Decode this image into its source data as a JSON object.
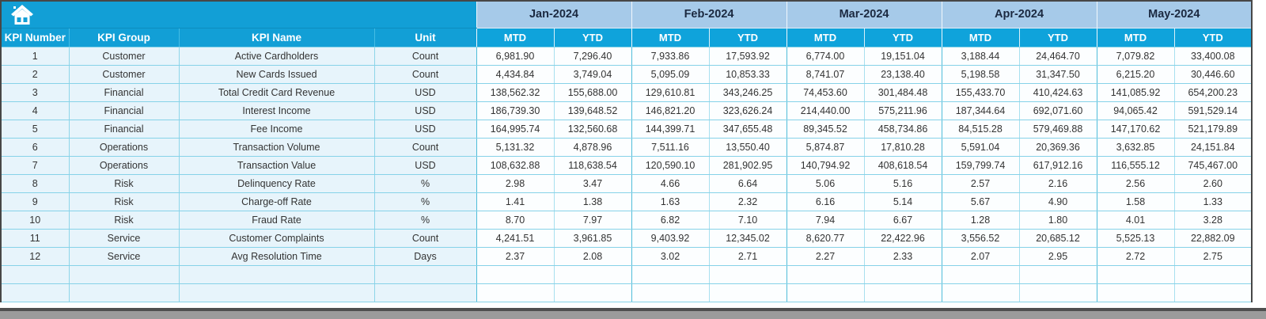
{
  "app": {
    "home_icon": "home-icon",
    "accent_cyan": "#129fd6",
    "subheader_cyan": "#0fa3db",
    "month_header_blue": "#a6cae9",
    "left_cell_blue": "#e7f4fb",
    "grid_border_cyan": "#86d2e8",
    "outer_border_gray": "#474747"
  },
  "table": {
    "left_headers": [
      "KPI Number",
      "KPI Group",
      "KPI Name",
      "Unit"
    ],
    "months": [
      "Jan-2024",
      "Feb-2024",
      "Mar-2024",
      "Apr-2024",
      "May-2024"
    ],
    "sub_headers": [
      "MTD",
      "YTD"
    ],
    "rows": [
      {
        "number": "1",
        "group": "Customer",
        "name": "Active Cardholders",
        "unit": "Count",
        "values": [
          "6,981.90",
          "7,296.40",
          "7,933.86",
          "17,593.92",
          "6,774.00",
          "19,151.04",
          "3,188.44",
          "24,464.70",
          "7,079.82",
          "33,400.08"
        ]
      },
      {
        "number": "2",
        "group": "Customer",
        "name": "New Cards Issued",
        "unit": "Count",
        "values": [
          "4,434.84",
          "3,749.04",
          "5,095.09",
          "10,853.33",
          "8,741.07",
          "23,138.40",
          "5,198.58",
          "31,347.50",
          "6,215.20",
          "30,446.60"
        ]
      },
      {
        "number": "3",
        "group": "Financial",
        "name": "Total Credit Card Revenue",
        "unit": "USD",
        "values": [
          "138,562.32",
          "155,688.00",
          "129,610.81",
          "343,246.25",
          "74,453.60",
          "301,484.48",
          "155,433.70",
          "410,424.63",
          "141,085.92",
          "654,200.23"
        ]
      },
      {
        "number": "4",
        "group": "Financial",
        "name": "Interest Income",
        "unit": "USD",
        "values": [
          "186,739.30",
          "139,648.52",
          "146,821.20",
          "323,626.24",
          "214,440.00",
          "575,211.96",
          "187,344.64",
          "692,071.60",
          "94,065.42",
          "591,529.14"
        ]
      },
      {
        "number": "5",
        "group": "Financial",
        "name": "Fee Income",
        "unit": "USD",
        "values": [
          "164,995.74",
          "132,560.68",
          "144,399.71",
          "347,655.48",
          "89,345.52",
          "458,734.86",
          "84,515.28",
          "579,469.88",
          "147,170.62",
          "521,179.89"
        ]
      },
      {
        "number": "6",
        "group": "Operations",
        "name": "Transaction Volume",
        "unit": "Count",
        "values": [
          "5,131.32",
          "4,878.96",
          "7,511.16",
          "13,550.40",
          "5,874.87",
          "17,810.28",
          "5,591.04",
          "20,369.36",
          "3,632.85",
          "24,151.84"
        ]
      },
      {
        "number": "7",
        "group": "Operations",
        "name": "Transaction Value",
        "unit": "USD",
        "values": [
          "108,632.88",
          "118,638.54",
          "120,590.10",
          "281,902.95",
          "140,794.92",
          "408,618.54",
          "159,799.74",
          "617,912.16",
          "116,555.12",
          "745,467.00"
        ]
      },
      {
        "number": "8",
        "group": "Risk",
        "name": "Delinquency Rate",
        "unit": "%",
        "values": [
          "2.98",
          "3.47",
          "4.66",
          "6.64",
          "5.06",
          "5.16",
          "2.57",
          "2.16",
          "2.56",
          "2.60"
        ]
      },
      {
        "number": "9",
        "group": "Risk",
        "name": "Charge-off Rate",
        "unit": "%",
        "values": [
          "1.41",
          "1.38",
          "1.63",
          "2.32",
          "6.16",
          "5.14",
          "5.67",
          "4.90",
          "1.58",
          "1.33"
        ]
      },
      {
        "number": "10",
        "group": "Risk",
        "name": "Fraud Rate",
        "unit": "%",
        "values": [
          "8.70",
          "7.97",
          "6.82",
          "7.10",
          "7.94",
          "6.67",
          "1.28",
          "1.80",
          "4.01",
          "3.28"
        ]
      },
      {
        "number": "11",
        "group": "Service",
        "name": "Customer Complaints",
        "unit": "Count",
        "values": [
          "4,241.51",
          "3,961.85",
          "9,403.92",
          "12,345.02",
          "8,620.77",
          "22,422.96",
          "3,556.52",
          "20,685.12",
          "5,525.13",
          "22,882.09"
        ]
      },
      {
        "number": "12",
        "group": "Service",
        "name": "Avg Resolution Time",
        "unit": "Days",
        "values": [
          "2.37",
          "2.08",
          "3.02",
          "2.71",
          "2.27",
          "2.33",
          "2.07",
          "2.95",
          "2.72",
          "2.75"
        ]
      }
    ],
    "empty_row_count": 2
  }
}
